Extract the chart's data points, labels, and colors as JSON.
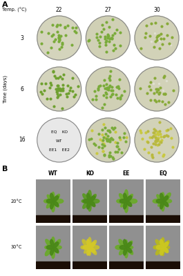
{
  "panel_A_label": "A",
  "panel_B_label": "B",
  "temp_label": "Temp. (°C)",
  "temp_values": [
    "22",
    "27",
    "30"
  ],
  "time_label": "Time (days)",
  "time_values": [
    "3",
    "6",
    "16"
  ],
  "legend_text": [
    "EQ    KO",
    "WT",
    "EE1    EE2"
  ],
  "panel_B_genotypes": [
    "WT",
    "KO",
    "EE",
    "EQ"
  ],
  "panel_B_temps": [
    "20°C",
    "30°C"
  ],
  "background_color": "#ffffff",
  "figure_width": 2.65,
  "figure_height": 4.0,
  "dpi": 100
}
